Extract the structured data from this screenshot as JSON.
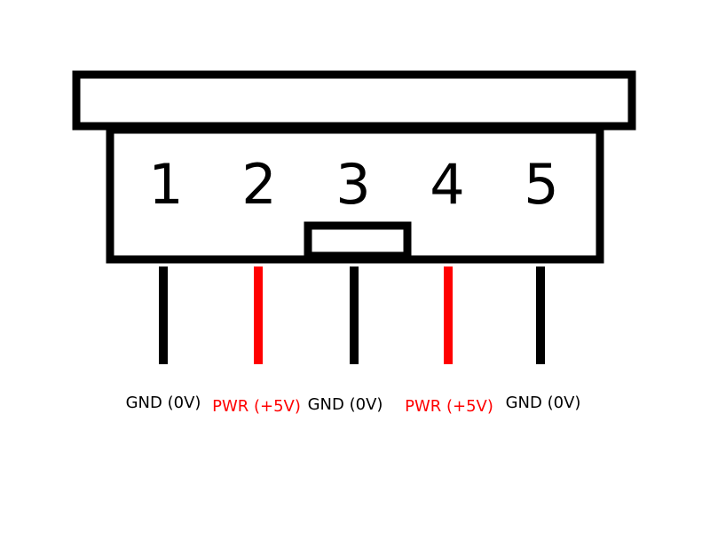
{
  "connector": {
    "pins": [
      {
        "number": "1",
        "label": "GND (0V)",
        "color": "#000000"
      },
      {
        "number": "2",
        "label": "PWR (+5V)",
        "color": "#ff0000"
      },
      {
        "number": "3",
        "label": "GND (0V)",
        "color": "#000000"
      },
      {
        "number": "4",
        "label": "PWR (+5V)",
        "color": "#ff0000"
      },
      {
        "number": "5",
        "label": "GND (0V)",
        "color": "#000000"
      }
    ]
  }
}
